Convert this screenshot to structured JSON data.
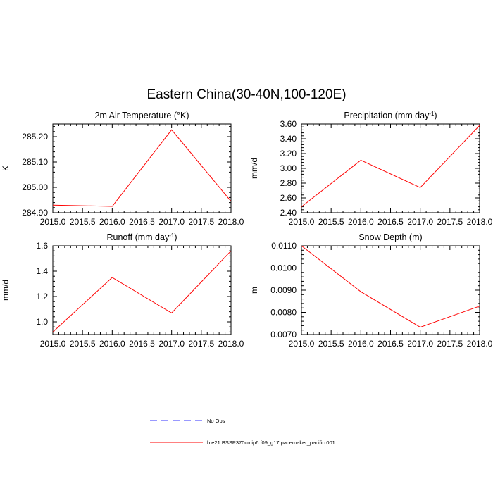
{
  "figure": {
    "title": "Eastern China(30-40N,100-120E)"
  },
  "legend": {
    "entries": [
      {
        "label": "No Obs",
        "color": "#3333ff",
        "style": "dashed"
      },
      {
        "label": "b.e21.BSSP370cmip6.f09_g17.pacemaker_pacific.001",
        "color": "#ff0000",
        "style": "solid"
      }
    ]
  },
  "chart_data": [
    {
      "type": "line",
      "title": "2m Air Temperature (°K)",
      "ylabel": "K",
      "xlabel": "",
      "xlim": [
        2015.0,
        2018.0
      ],
      "ylim": [
        284.9,
        285.25
      ],
      "xticks": [
        "2015.0",
        "2015.5",
        "2016.0",
        "2016.5",
        "2017.0",
        "2017.5",
        "2018.0"
      ],
      "yticks": [
        "284.90",
        "285.00",
        "285.10",
        "285.20"
      ],
      "grid": false,
      "series": [
        {
          "name": "b.e21.BSSP370cmip6.f09_g17.pacemaker_pacific.001",
          "color": "#ff0000",
          "x": [
            2015,
            2016,
            2017,
            2018
          ],
          "y": [
            284.93,
            284.925,
            285.227,
            284.945
          ]
        }
      ]
    },
    {
      "type": "line",
      "title": "Precipitation (mm day-1)",
      "ylabel": "mm/d",
      "xlabel": "",
      "xlim": [
        2015.0,
        2018.0
      ],
      "ylim": [
        2.4,
        3.6
      ],
      "xticks": [
        "2015.0",
        "2015.5",
        "2016.0",
        "2016.5",
        "2017.0",
        "2017.5",
        "2018.0"
      ],
      "yticks": [
        "2.40",
        "2.60",
        "2.80",
        "3.00",
        "3.20",
        "3.40",
        "3.60"
      ],
      "grid": false,
      "series": [
        {
          "name": "b.e21.BSSP370cmip6.f09_g17.pacemaker_pacific.001",
          "color": "#ff0000",
          "x": [
            2015,
            2016,
            2017,
            2018
          ],
          "y": [
            2.48,
            3.11,
            2.74,
            3.58
          ]
        }
      ]
    },
    {
      "type": "line",
      "title": "Runoff (mm day-1)",
      "ylabel": "mm/d",
      "xlabel": "",
      "xlim": [
        2015.0,
        2018.0
      ],
      "ylim": [
        0.9,
        1.6
      ],
      "xticks": [
        "2015.0",
        "2015.5",
        "2016.0",
        "2016.5",
        "2017.0",
        "2017.5",
        "2018.0"
      ],
      "yticks": [
        "1.0",
        "1.2",
        "1.4",
        "1.6"
      ],
      "grid": false,
      "series": [
        {
          "name": "b.e21.BSSP370cmip6.f09_g17.pacemaker_pacific.001",
          "color": "#ff0000",
          "x": [
            2015,
            2016,
            2017,
            2018
          ],
          "y": [
            0.92,
            1.35,
            1.07,
            1.56
          ]
        }
      ]
    },
    {
      "type": "line",
      "title": "Snow Depth (m)",
      "ylabel": "m",
      "xlabel": "",
      "xlim": [
        2015.0,
        2018.0
      ],
      "ylim": [
        0.007,
        0.011
      ],
      "xticks": [
        "2015.0",
        "2015.5",
        "2016.0",
        "2016.5",
        "2017.0",
        "2017.5",
        "2018.0"
      ],
      "yticks": [
        "0.0070",
        "0.0080",
        "0.0090",
        "0.0100",
        "0.0110"
      ],
      "grid": false,
      "series": [
        {
          "name": "b.e21.BSSP370cmip6.f09_g17.pacemaker_pacific.001",
          "color": "#ff0000",
          "x": [
            2015,
            2016,
            2017,
            2018
          ],
          "y": [
            0.011,
            0.00893,
            0.00733,
            0.00828
          ]
        }
      ]
    }
  ]
}
